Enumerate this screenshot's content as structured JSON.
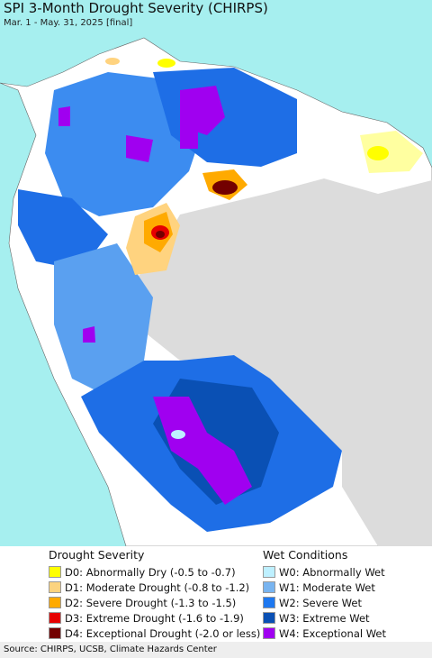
{
  "header": {
    "title": "SPI 3-Month Drought Severity (CHIRPS)",
    "subtitle": "Mar. 1 - May. 31, 2025 [final]"
  },
  "legend": {
    "drought": {
      "title": "Drought Severity",
      "items": [
        {
          "label": "D0: Abnormally Dry (-0.5 to -0.7)",
          "color": "#ffff00"
        },
        {
          "label": "D1: Moderate Drought (-0.8 to -1.2)",
          "color": "#fcd37f"
        },
        {
          "label": "D2: Severe Drought (-1.3 to -1.5)",
          "color": "#ffaa00"
        },
        {
          "label": "D3: Extreme Drought (-1.6 to -1.9)",
          "color": "#e60000"
        },
        {
          "label": "D4: Exceptional Drought (-2.0 or less)",
          "color": "#730000"
        }
      ]
    },
    "wet": {
      "title": "Wet Conditions",
      "items": [
        {
          "label": "W0: Abnormally Wet",
          "color": "#bef0ff"
        },
        {
          "label": "W1: Moderate Wet",
          "color": "#78b4f0"
        },
        {
          "label": "W2: Severe Wet",
          "color": "#1e78f0"
        },
        {
          "label": "W3: Extreme Wet",
          "color": "#0a50b4"
        },
        {
          "label": "W4: Exceptional Wet",
          "color": "#a000f0"
        }
      ]
    }
  },
  "footer": {
    "source": "Source: CHIRPS, UCSB, Climate Hazards Center"
  }
}
